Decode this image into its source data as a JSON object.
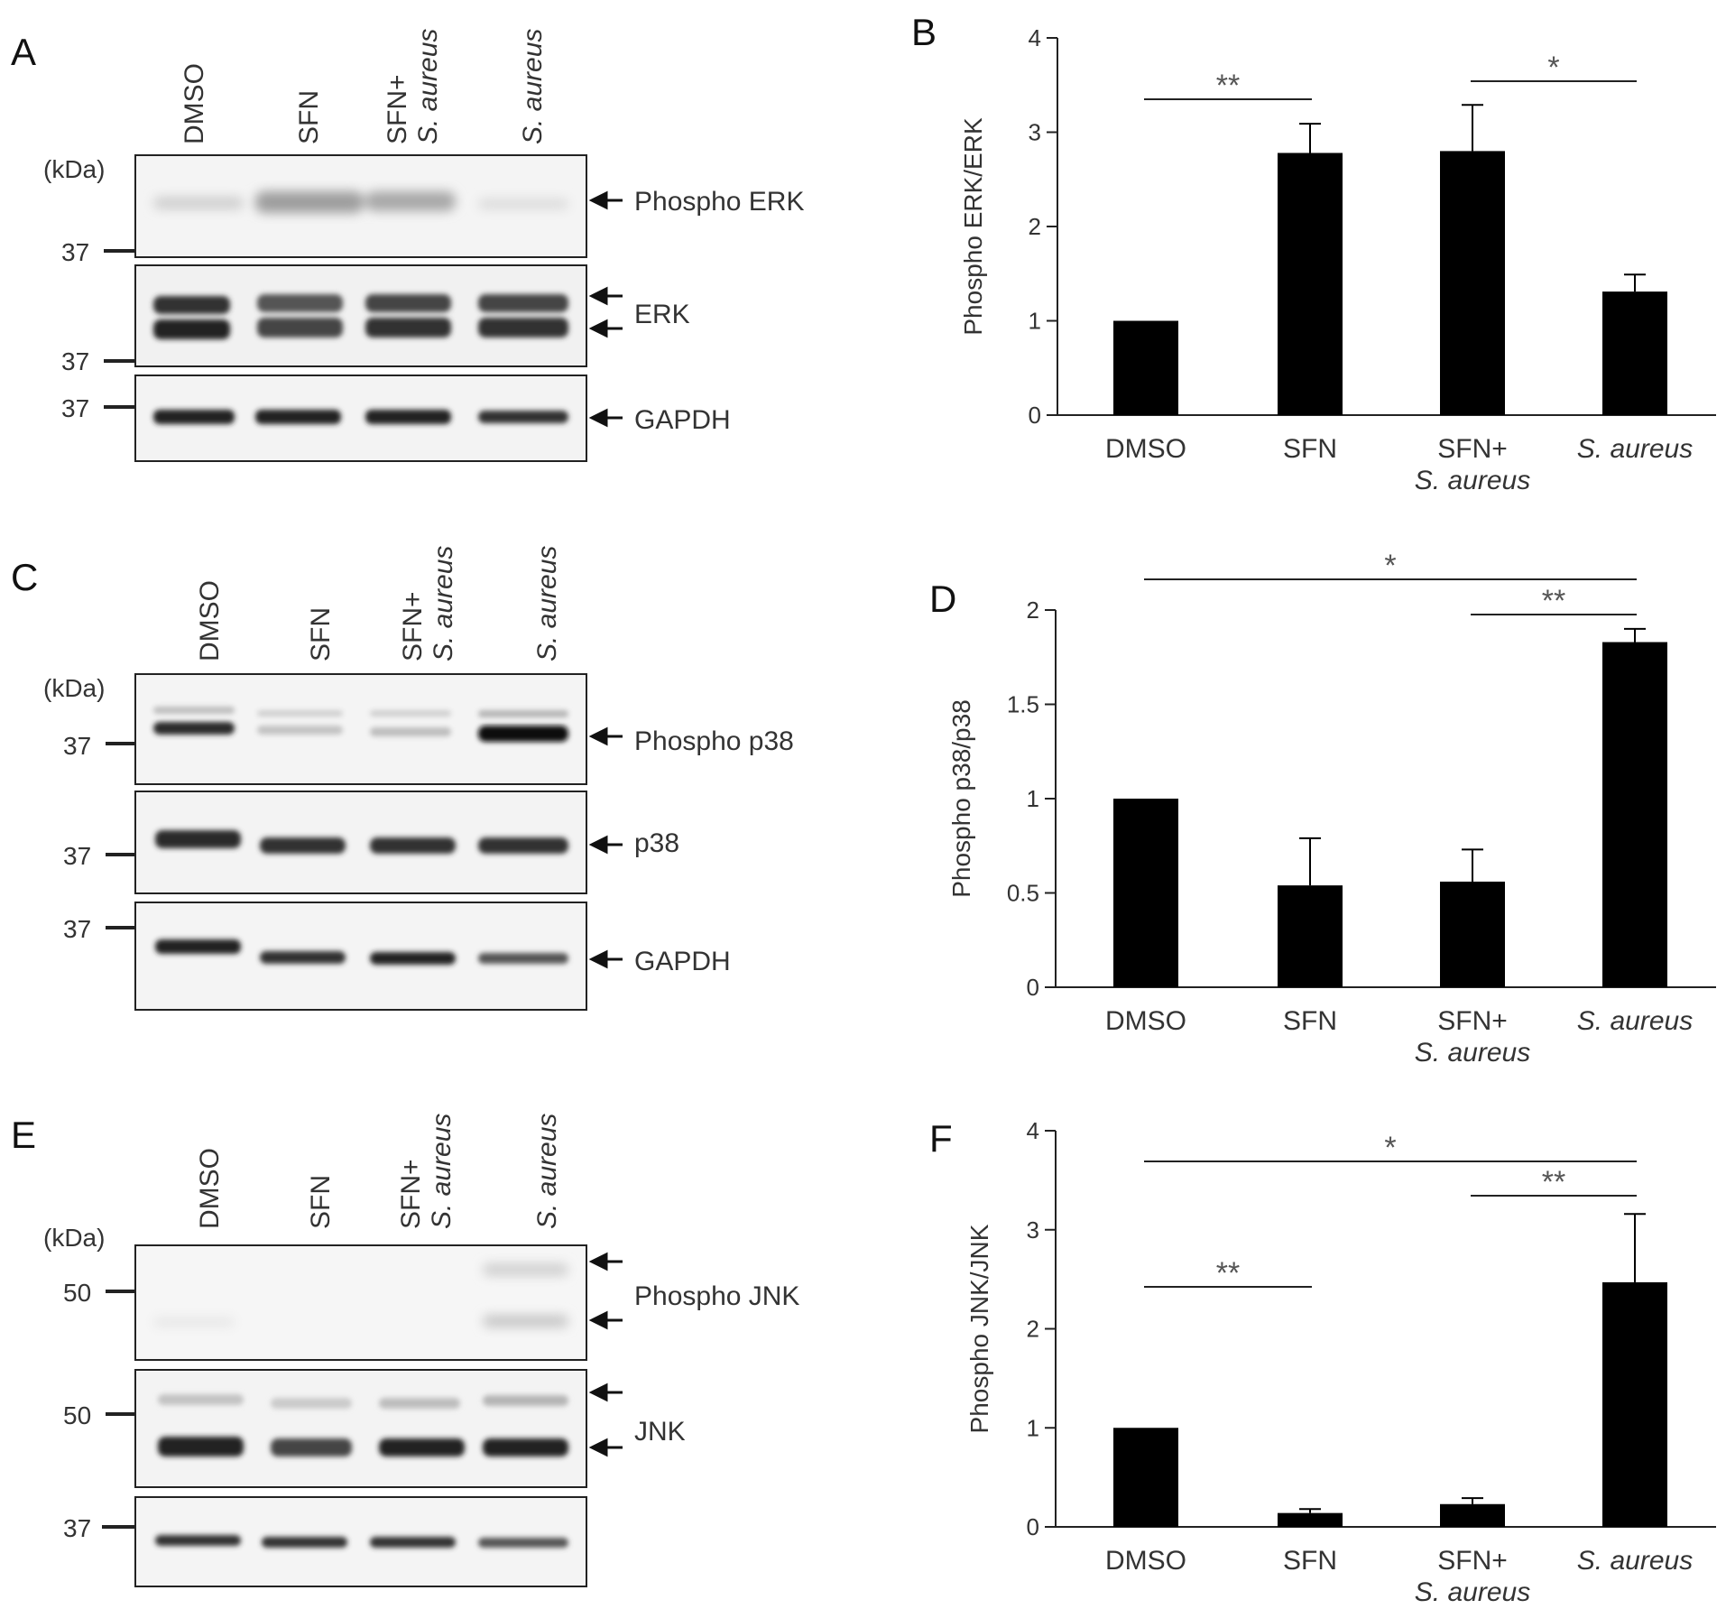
{
  "blots": [
    {
      "letter": "A",
      "lanes": [
        "DMSO",
        "SFN",
        "SFN+",
        "S. aureus"
      ],
      "lane_sub": [
        "",
        "",
        "S. aureus",
        ""
      ],
      "kda": "(kDa)",
      "rows": [
        {
          "label": "Phospho ERK",
          "marker": "37"
        },
        {
          "label": "ERK",
          "marker": "37"
        },
        {
          "label": "GAPDH",
          "marker": "37"
        }
      ]
    },
    {
      "letter": "C",
      "lanes": [
        "DMSO",
        "SFN",
        "SFN+",
        "S. aureus"
      ],
      "lane_sub": [
        "",
        "",
        "S. aureus",
        ""
      ],
      "kda": "(kDa)",
      "rows": [
        {
          "label": "Phospho p38",
          "marker": "37"
        },
        {
          "label": "p38",
          "marker": "37"
        },
        {
          "label": "GAPDH",
          "marker": "37"
        }
      ]
    },
    {
      "letter": "E",
      "lanes": [
        "DMSO",
        "SFN",
        "SFN+",
        "S. aureus"
      ],
      "lane_sub": [
        "",
        "",
        "S. aureus",
        ""
      ],
      "kda": "(kDa)",
      "rows": [
        {
          "label": "Phospho JNK",
          "marker": "50"
        },
        {
          "label": "JNK",
          "marker": "50"
        },
        {
          "label": "",
          "marker": "37"
        }
      ]
    }
  ],
  "chart_data": [
    {
      "type": "bar",
      "letter": "B",
      "categories": [
        "DMSO",
        "SFN",
        "SFN+",
        "S. aureus"
      ],
      "category_sub": [
        "",
        "",
        "S. aureus",
        ""
      ],
      "values": [
        1.0,
        2.78,
        2.8,
        1.31
      ],
      "errors": [
        0.0,
        0.31,
        0.49,
        0.18
      ],
      "ylabel": "Phospho ERK/ERK",
      "ylim": [
        0,
        4
      ],
      "yticks": [
        "0",
        "1",
        "2",
        "3",
        "4"
      ],
      "significance": [
        {
          "from": 0,
          "to": 1,
          "label": "**"
        },
        {
          "from": 2,
          "to": 3,
          "label": "*"
        }
      ]
    },
    {
      "type": "bar",
      "letter": "D",
      "categories": [
        "DMSO",
        "SFN",
        "SFN+",
        "S. aureus"
      ],
      "category_sub": [
        "",
        "",
        "S. aureus",
        ""
      ],
      "values": [
        1.0,
        0.54,
        0.56,
        1.83
      ],
      "errors": [
        0.0,
        0.25,
        0.17,
        0.07
      ],
      "ylabel": "Phospho p38/p38",
      "ylim": [
        0,
        2
      ],
      "yticks": [
        "0",
        "0.5",
        "1",
        "1.5",
        "2"
      ],
      "significance": [
        {
          "from": 0,
          "to": 3,
          "label": "*"
        },
        {
          "from": 2,
          "to": 3,
          "label": "**"
        }
      ]
    },
    {
      "type": "bar",
      "letter": "F",
      "categories": [
        "DMSO",
        "SFN",
        "SFN+",
        "S. aureus"
      ],
      "category_sub": [
        "",
        "",
        "S. aureus",
        ""
      ],
      "values": [
        1.0,
        0.14,
        0.23,
        2.47
      ],
      "errors": [
        0.0,
        0.04,
        0.06,
        0.69
      ],
      "ylabel": "Phospho JNK/JNK",
      "ylim": [
        0,
        4
      ],
      "yticks": [
        "0",
        "1",
        "2",
        "3",
        "4"
      ],
      "significance": [
        {
          "from": 0,
          "to": 3,
          "label": "*"
        },
        {
          "from": 2,
          "to": 3,
          "label": "**"
        },
        {
          "from": 0,
          "to": 1,
          "label": "**"
        }
      ]
    }
  ]
}
